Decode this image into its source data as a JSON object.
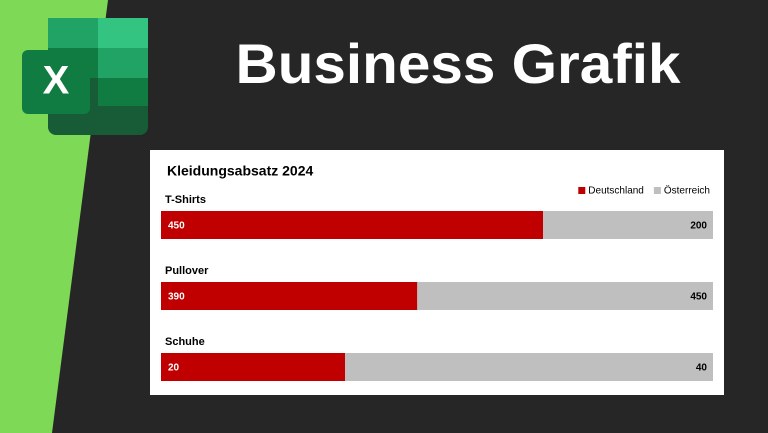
{
  "header": {
    "title": "Business Grafik",
    "logo_text": "X"
  },
  "chart_data": {
    "type": "bar",
    "orientation": "horizontal",
    "stacking": "percent",
    "title": "Kleidungsabsatz 2024",
    "categories": [
      "T-Shirts",
      "Pullover",
      "Schuhe"
    ],
    "series": [
      {
        "name": "Deutschland",
        "color": "#c00000",
        "values": [
          450,
          390,
          20
        ]
      },
      {
        "name": "Österreich",
        "color": "#bfbfbf",
        "values": [
          200,
          450,
          40
        ]
      }
    ],
    "legend": "top-right"
  }
}
